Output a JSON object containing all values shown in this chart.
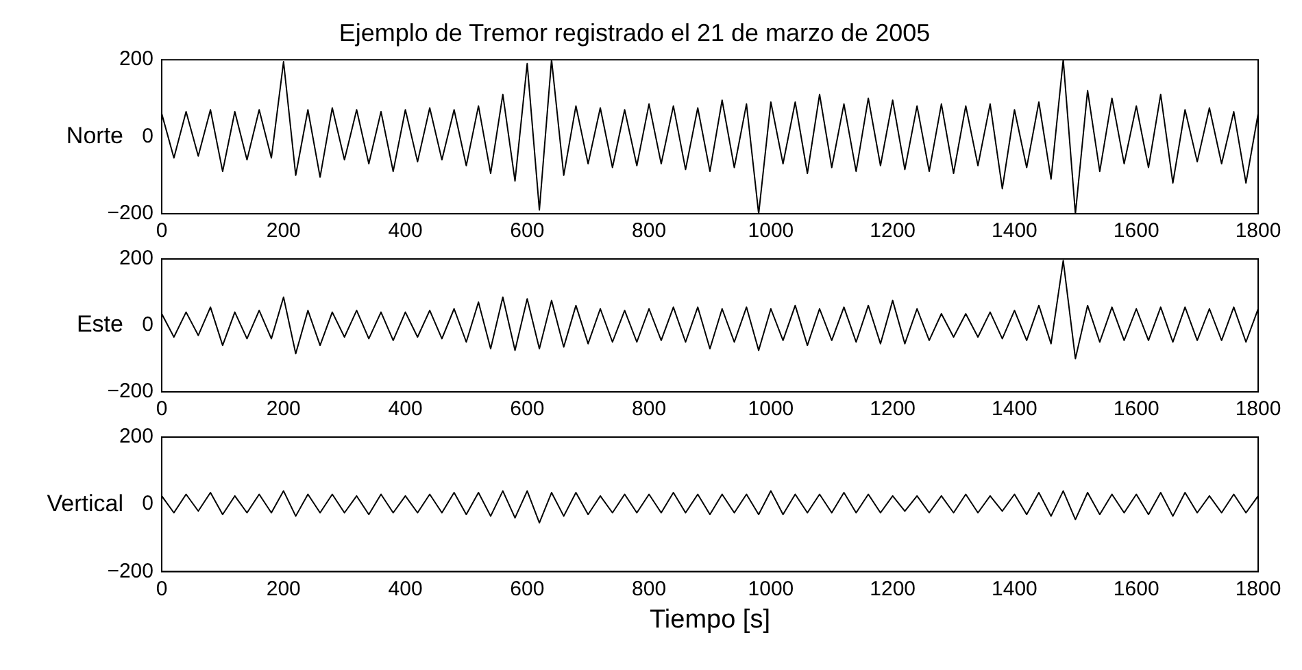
{
  "chart_data": [
    {
      "type": "line",
      "title": "Ejemplo de Tremor registrado el 21 de marzo de 2005",
      "ylabel": "Norte",
      "marker": "none",
      "grid": false,
      "xlim": [
        0,
        1800
      ],
      "xticks": [
        0,
        200,
        400,
        600,
        800,
        1000,
        1200,
        1400,
        1600,
        1800
      ],
      "ylim": [
        -200,
        200
      ],
      "yticks": [
        -200,
        0,
        200
      ],
      "x": [
        0,
        20,
        40,
        60,
        80,
        100,
        120,
        140,
        160,
        180,
        200,
        220,
        240,
        260,
        280,
        300,
        320,
        340,
        360,
        380,
        400,
        420,
        440,
        460,
        480,
        500,
        520,
        540,
        560,
        580,
        600,
        620,
        640,
        660,
        680,
        700,
        720,
        740,
        760,
        780,
        800,
        820,
        840,
        860,
        880,
        900,
        920,
        940,
        960,
        980,
        1000,
        1020,
        1040,
        1060,
        1080,
        1100,
        1120,
        1140,
        1160,
        1180,
        1200,
        1220,
        1240,
        1260,
        1280,
        1300,
        1320,
        1340,
        1360,
        1380,
        1400,
        1420,
        1440,
        1460,
        1480,
        1500,
        1520,
        1540,
        1560,
        1580,
        1600,
        1620,
        1640,
        1660,
        1680,
        1700,
        1720,
        1740,
        1760,
        1780,
        1800
      ],
      "series": [
        {
          "color": "#000000",
          "values": [
            60,
            -55,
            65,
            -50,
            70,
            -90,
            65,
            -60,
            70,
            -55,
            195,
            -100,
            70,
            -105,
            75,
            -60,
            70,
            -70,
            65,
            -90,
            70,
            -65,
            75,
            -60,
            70,
            -75,
            80,
            -95,
            110,
            -115,
            190,
            -190,
            200,
            -100,
            80,
            -70,
            75,
            -80,
            70,
            -75,
            85,
            -70,
            80,
            -85,
            75,
            -90,
            95,
            -80,
            85,
            -200,
            90,
            -70,
            90,
            -95,
            110,
            -80,
            85,
            -90,
            100,
            -75,
            95,
            -85,
            80,
            -90,
            85,
            -95,
            80,
            -75,
            85,
            -135,
            70,
            -80,
            90,
            -110,
            200,
            -200,
            120,
            -90,
            100,
            -70,
            80,
            -80,
            110,
            -120,
            70,
            -65,
            75,
            -70,
            65,
            -120,
            60
          ]
        }
      ]
    },
    {
      "type": "line",
      "ylabel": "Este",
      "marker": "none",
      "grid": false,
      "xlim": [
        0,
        1800
      ],
      "xticks": [
        0,
        200,
        400,
        600,
        800,
        1000,
        1200,
        1400,
        1600,
        1800
      ],
      "ylim": [
        -200,
        200
      ],
      "yticks": [
        -200,
        0,
        200
      ],
      "x": [
        0,
        20,
        40,
        60,
        80,
        100,
        120,
        140,
        160,
        180,
        200,
        220,
        240,
        260,
        280,
        300,
        320,
        340,
        360,
        380,
        400,
        420,
        440,
        460,
        480,
        500,
        520,
        540,
        560,
        580,
        600,
        620,
        640,
        660,
        680,
        700,
        720,
        740,
        760,
        780,
        800,
        820,
        840,
        860,
        880,
        900,
        920,
        940,
        960,
        980,
        1000,
        1020,
        1040,
        1060,
        1080,
        1100,
        1120,
        1140,
        1160,
        1180,
        1200,
        1220,
        1240,
        1260,
        1280,
        1300,
        1320,
        1340,
        1360,
        1380,
        1400,
        1420,
        1440,
        1460,
        1480,
        1500,
        1520,
        1540,
        1560,
        1580,
        1600,
        1620,
        1640,
        1660,
        1680,
        1700,
        1720,
        1740,
        1760,
        1780,
        1800
      ],
      "series": [
        {
          "color": "#000000",
          "values": [
            35,
            -35,
            40,
            -30,
            55,
            -60,
            40,
            -40,
            45,
            -40,
            85,
            -85,
            45,
            -60,
            40,
            -35,
            45,
            -40,
            40,
            -45,
            40,
            -35,
            45,
            -40,
            50,
            -50,
            70,
            -70,
            85,
            -75,
            80,
            -70,
            75,
            -65,
            60,
            -55,
            50,
            -50,
            45,
            -50,
            50,
            -45,
            55,
            -50,
            55,
            -70,
            50,
            -50,
            55,
            -75,
            50,
            -45,
            60,
            -60,
            50,
            -45,
            55,
            -50,
            60,
            -55,
            75,
            -55,
            50,
            -45,
            35,
            -35,
            35,
            -35,
            40,
            -40,
            45,
            -45,
            60,
            -55,
            195,
            -100,
            60,
            -50,
            55,
            -45,
            50,
            -45,
            55,
            -50,
            55,
            -45,
            50,
            -45,
            55,
            -50,
            50
          ]
        }
      ]
    },
    {
      "type": "line",
      "ylabel": "Vertical",
      "xlabel": "Tiempo [s]",
      "marker": "none",
      "grid": false,
      "xlim": [
        0,
        1800
      ],
      "xticks": [
        0,
        200,
        400,
        600,
        800,
        1000,
        1200,
        1400,
        1600,
        1800
      ],
      "ylim": [
        -200,
        200
      ],
      "yticks": [
        -200,
        0,
        200
      ],
      "x": [
        0,
        20,
        40,
        60,
        80,
        100,
        120,
        140,
        160,
        180,
        200,
        220,
        240,
        260,
        280,
        300,
        320,
        340,
        360,
        380,
        400,
        420,
        440,
        460,
        480,
        500,
        520,
        540,
        560,
        580,
        600,
        620,
        640,
        660,
        680,
        700,
        720,
        740,
        760,
        780,
        800,
        820,
        840,
        860,
        880,
        900,
        920,
        940,
        960,
        980,
        1000,
        1020,
        1040,
        1060,
        1080,
        1100,
        1120,
        1140,
        1160,
        1180,
        1200,
        1220,
        1240,
        1260,
        1280,
        1300,
        1320,
        1340,
        1360,
        1380,
        1400,
        1420,
        1440,
        1460,
        1480,
        1500,
        1520,
        1540,
        1560,
        1580,
        1600,
        1620,
        1640,
        1660,
        1680,
        1700,
        1720,
        1740,
        1760,
        1780,
        1800
      ],
      "series": [
        {
          "color": "#000000",
          "values": [
            25,
            -25,
            30,
            -20,
            35,
            -30,
            25,
            -25,
            30,
            -25,
            40,
            -35,
            30,
            -25,
            30,
            -25,
            25,
            -30,
            30,
            -25,
            25,
            -25,
            30,
            -25,
            35,
            -30,
            35,
            -35,
            40,
            -40,
            40,
            -55,
            35,
            -35,
            35,
            -30,
            25,
            -25,
            30,
            -25,
            30,
            -25,
            35,
            -25,
            30,
            -30,
            30,
            -25,
            30,
            -30,
            40,
            -30,
            30,
            -25,
            30,
            -25,
            35,
            -25,
            30,
            -25,
            25,
            -20,
            25,
            -25,
            25,
            -25,
            30,
            -25,
            25,
            -20,
            30,
            -30,
            35,
            -35,
            40,
            -45,
            35,
            -30,
            30,
            -25,
            30,
            -30,
            35,
            -35,
            35,
            -25,
            25,
            -25,
            30,
            -25,
            25
          ]
        }
      ]
    }
  ]
}
